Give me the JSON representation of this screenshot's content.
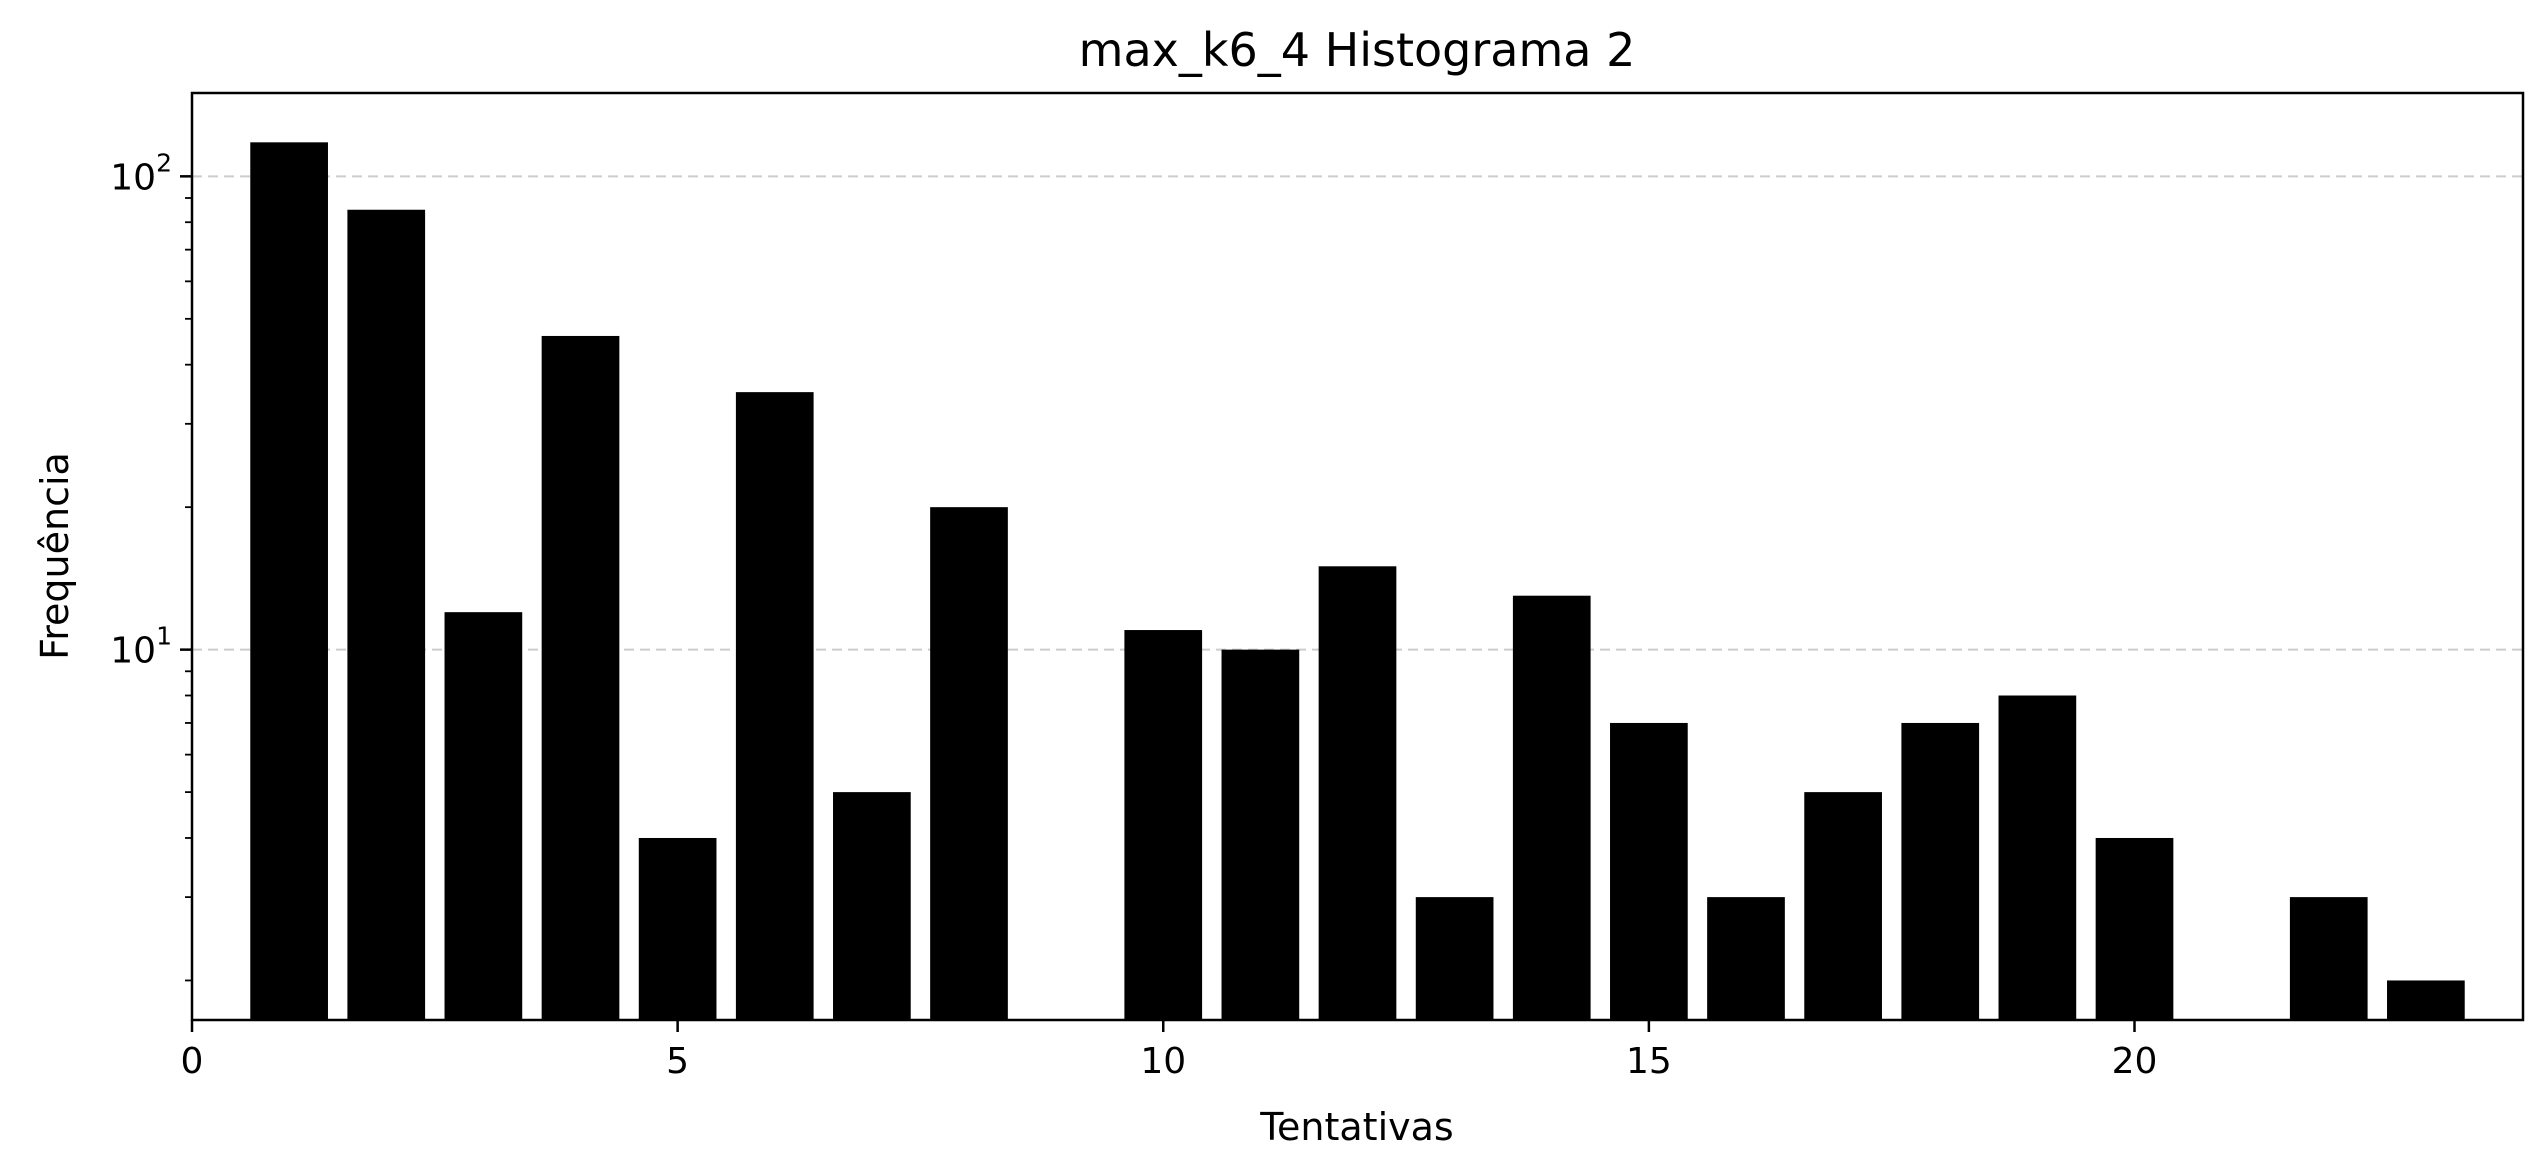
{
  "chart_data": {
    "type": "bar",
    "title": "max_k6_4 Histograma 2",
    "xlabel": "Tentativas",
    "ylabel": "Frequência",
    "yscale": "log",
    "x": [
      1,
      2,
      3,
      4,
      5,
      6,
      7,
      8,
      10,
      11,
      12,
      13,
      14,
      15,
      16,
      17,
      18,
      19,
      20,
      22,
      23
    ],
    "values": [
      118,
      85,
      12,
      46,
      4,
      35,
      5,
      20,
      11,
      10,
      15,
      3,
      13,
      7,
      3,
      5,
      7,
      8,
      4,
      3,
      2
    ],
    "xlim": [
      0,
      24
    ],
    "ylim": [
      1.65,
      150
    ],
    "xticks": [
      0,
      5,
      10,
      15,
      20
    ],
    "yticks": [
      {
        "value": 10,
        "base": "10",
        "exp": "1"
      },
      {
        "value": 100,
        "base": "10",
        "exp": "2"
      }
    ],
    "bar_width": 0.8,
    "grid": "y-major-dashed",
    "legend": "none",
    "colors": {
      "bar": "#000000",
      "grid": "#cccccc",
      "axes": "#000000"
    }
  }
}
